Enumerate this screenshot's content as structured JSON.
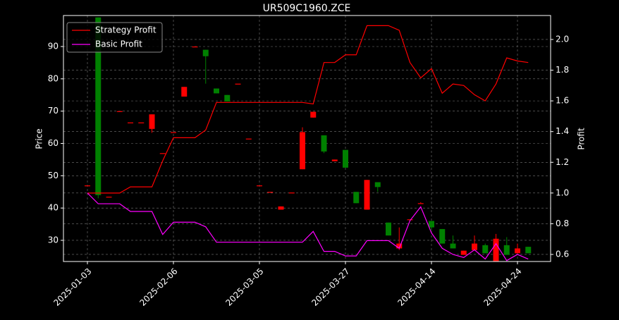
{
  "chart_data": {
    "type": "candlestick",
    "title": "UR509C1960.ZCE",
    "ylabel": "Price",
    "y2label": "Profit",
    "categories": [
      "2025-01-03",
      null,
      null,
      null,
      null,
      null,
      null,
      null,
      "2025-02-06",
      null,
      null,
      null,
      null,
      null,
      null,
      null,
      "2025-03-05",
      null,
      null,
      null,
      null,
      null,
      null,
      null,
      "2025-03-27",
      null,
      null,
      null,
      null,
      null,
      null,
      null,
      "2025-04-14",
      null,
      null,
      null,
      null,
      null,
      null,
      null,
      "2025-04-24",
      null
    ],
    "open": [
      47,
      99,
      43.5,
      70,
      66.5,
      66.5,
      64.5,
      57,
      63.5,
      74.5,
      90,
      89,
      77,
      75,
      78.5,
      61.5,
      47,
      45,
      39.5,
      44.8,
      52,
      68,
      62.5,
      54.5,
      58,
      45,
      39.5,
      48,
      35.5,
      27.5,
      36.5,
      41.5,
      36,
      33.5,
      29,
      25.5,
      27,
      28.5,
      23.5,
      28.5,
      26,
      28
    ],
    "high": [
      47,
      99,
      43.5,
      70,
      66.5,
      66.5,
      69,
      57,
      63.5,
      77.5,
      90,
      89,
      77,
      75,
      78.5,
      61.5,
      47,
      45,
      40.5,
      44.8,
      65,
      69.8,
      62.5,
      55,
      58,
      45,
      48.7,
      48,
      35.5,
      34,
      36.5,
      41.8,
      36,
      33.5,
      31.5,
      26.8,
      31.5,
      29,
      32,
      31,
      29,
      28
    ],
    "low": [
      47,
      43,
      43.5,
      70,
      66.5,
      66.5,
      63.3,
      57,
      63.5,
      74.5,
      90,
      78.5,
      75.5,
      73,
      78.5,
      61.5,
      47,
      45,
      39.5,
      44.8,
      52,
      68,
      57,
      54.5,
      52.5,
      41.5,
      39.5,
      45,
      31.5,
      27,
      36.5,
      41.5,
      33,
      29,
      27.5,
      25.5,
      27,
      26,
      23.5,
      25.5,
      26,
      26
    ],
    "close": [
      47,
      44,
      43.5,
      70,
      66.5,
      66.5,
      69,
      57,
      63.5,
      77.5,
      90,
      87,
      75.5,
      73,
      78.5,
      61.5,
      47,
      45,
      40.5,
      44.8,
      63.5,
      69.8,
      57.5,
      55,
      52.5,
      41.5,
      48.7,
      46.5,
      31.5,
      29,
      36.5,
      41.5,
      34,
      29,
      27.5,
      26.8,
      29,
      26,
      30.5,
      25.5,
      27.5,
      26
    ],
    "up_color": "#ff0000",
    "down_color": "#008000",
    "series": [
      {
        "name": "Strategy Profit",
        "color": "#ff0000",
        "axis": "y2",
        "values": [
          1.0,
          1.0,
          1.0,
          1.0,
          1.04,
          1.04,
          1.04,
          1.21,
          1.36,
          1.36,
          1.36,
          1.41,
          1.59,
          1.59,
          1.59,
          1.59,
          1.59,
          1.59,
          1.59,
          1.59,
          1.59,
          1.58,
          1.85,
          1.85,
          1.9,
          1.9,
          2.09,
          2.09,
          2.09,
          2.06,
          1.85,
          1.75,
          1.81,
          1.65,
          1.71,
          1.7,
          1.64,
          1.6,
          1.71,
          1.88,
          1.86,
          1.85
        ]
      },
      {
        "name": "Basic Profit",
        "color": "#ff00ff",
        "axis": "y2",
        "values": [
          1.0,
          0.93,
          0.93,
          0.93,
          0.88,
          0.88,
          0.88,
          0.73,
          0.81,
          0.81,
          0.81,
          0.78,
          0.68,
          0.68,
          0.68,
          0.68,
          0.68,
          0.68,
          0.68,
          0.68,
          0.68,
          0.75,
          0.62,
          0.62,
          0.59,
          0.59,
          0.69,
          0.69,
          0.69,
          0.64,
          0.82,
          0.91,
          0.74,
          0.64,
          0.6,
          0.58,
          0.63,
          0.57,
          0.67,
          0.56,
          0.6,
          0.57
        ]
      }
    ],
    "ylim": [
      23.45,
      99.6
    ],
    "yticks": [
      30,
      40,
      50,
      60,
      70,
      80,
      90
    ],
    "y2lim": [
      0.554,
      2.156
    ],
    "y2ticks": [
      0.6,
      0.8,
      {
        "value": 1,
        "label": "1.0"
      },
      1.2,
      1.4,
      1.6,
      1.8,
      {
        "value": 2,
        "label": "2.0"
      }
    ],
    "grid": true,
    "legend": "upper left"
  }
}
